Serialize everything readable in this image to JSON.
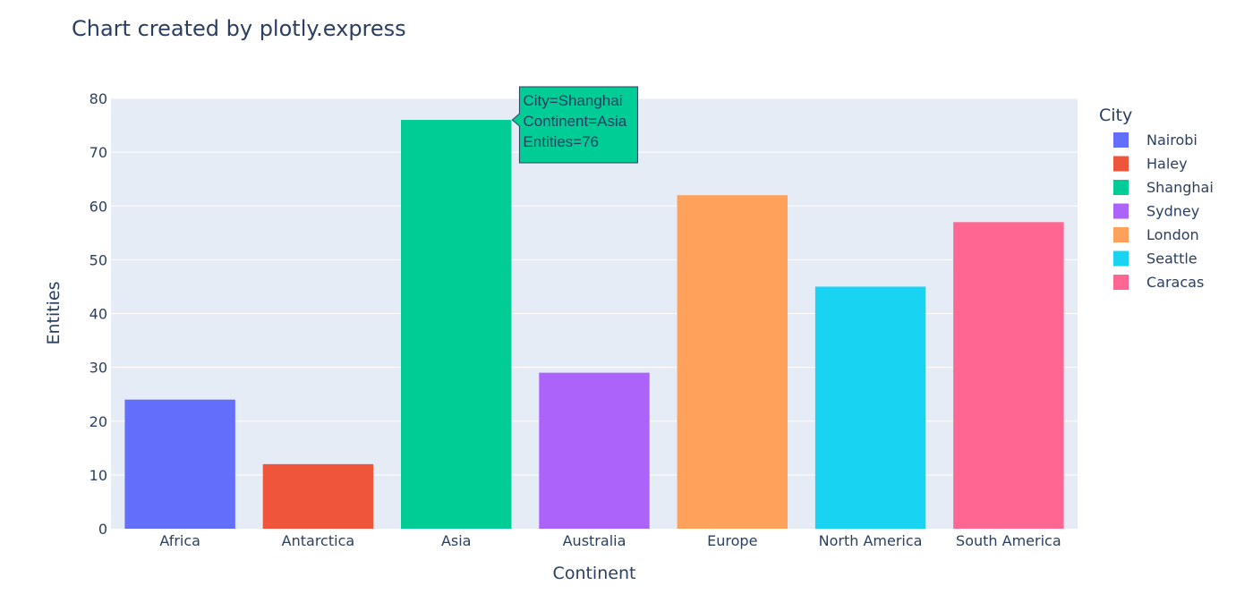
{
  "chart_data": {
    "type": "bar",
    "title": "Chart created by plotly.express",
    "xlabel": "Continent",
    "ylabel": "Entities",
    "categories": [
      "Africa",
      "Antarctica",
      "Asia",
      "Australia",
      "Europe",
      "North America",
      "South America"
    ],
    "ylim": [
      0,
      80
    ],
    "yticks": [
      0,
      10,
      20,
      30,
      40,
      50,
      60,
      70,
      80
    ],
    "grid": true,
    "plot_background": "#e5ecf6",
    "legend": {
      "title": "City",
      "placement": "right"
    },
    "series": [
      {
        "name": "Nairobi",
        "category": "Africa",
        "value": 24,
        "color": "#636efa"
      },
      {
        "name": "Haley",
        "category": "Antarctica",
        "value": 12,
        "color": "#ef553b"
      },
      {
        "name": "Shanghai",
        "category": "Asia",
        "value": 76,
        "color": "#00cc96"
      },
      {
        "name": "Sydney",
        "category": "Australia",
        "value": 29,
        "color": "#ab63fa"
      },
      {
        "name": "London",
        "category": "Europe",
        "value": 62,
        "color": "#ffa15a"
      },
      {
        "name": "Seattle",
        "category": "North America",
        "value": 45,
        "color": "#19d3f3"
      },
      {
        "name": "Caracas",
        "category": "South America",
        "value": 57,
        "color": "#ff6692"
      }
    ],
    "hover_tooltip": {
      "category": "Asia",
      "lines": [
        "City=Shanghai",
        "Continent=Asia",
        "Entities=76"
      ],
      "color": "#00cc96"
    }
  }
}
